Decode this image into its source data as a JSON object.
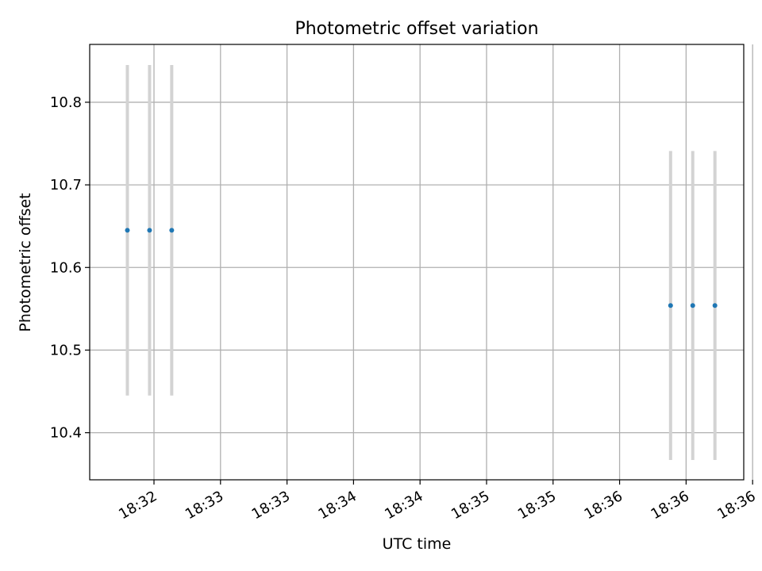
{
  "chart_data": {
    "type": "scatter",
    "title": "Photometric offset variation",
    "xlabel": "UTC time",
    "ylabel": "Photometric offset",
    "x_axis": {
      "type": "time",
      "range": [
        "18:31:31",
        "18:36:26"
      ],
      "ticks": [
        {
          "time": "18:32:00",
          "label": "18:32"
        },
        {
          "time": "18:32:30",
          "label": "18:33"
        },
        {
          "time": "18:33:00",
          "label": "18:33"
        },
        {
          "time": "18:33:30",
          "label": "18:34"
        },
        {
          "time": "18:34:00",
          "label": "18:34"
        },
        {
          "time": "18:34:30",
          "label": "18:35"
        },
        {
          "time": "18:35:00",
          "label": "18:35"
        },
        {
          "time": "18:35:30",
          "label": "18:36"
        },
        {
          "time": "18:36:00",
          "label": "18:36"
        },
        {
          "time": "18:36:30",
          "label": "18:36"
        }
      ]
    },
    "y_axis": {
      "range": [
        10.343,
        10.87
      ],
      "ticks": [
        10.4,
        10.5,
        10.6,
        10.7,
        10.8
      ],
      "tick_labels": [
        "10.4",
        "10.5",
        "10.6",
        "10.7",
        "10.8"
      ]
    },
    "grid": true,
    "colors": {
      "points": "#1f77b4",
      "error_bars": "#d3d3d3",
      "grid": "#b0b0b0"
    },
    "points": [
      {
        "time": "18:31:48",
        "y": 10.645,
        "err": 0.2
      },
      {
        "time": "18:31:58",
        "y": 10.645,
        "err": 0.2
      },
      {
        "time": "18:32:08",
        "y": 10.645,
        "err": 0.2
      },
      {
        "time": "18:35:53",
        "y": 10.554,
        "err": 0.187
      },
      {
        "time": "18:36:03",
        "y": 10.554,
        "err": 0.187
      },
      {
        "time": "18:36:13",
        "y": 10.554,
        "err": 0.187
      }
    ]
  }
}
